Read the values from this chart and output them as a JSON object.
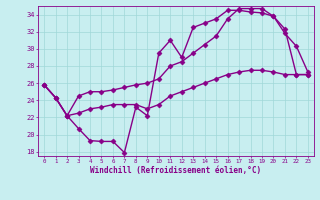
{
  "xlabel": "Windchill (Refroidissement éolien,°C)",
  "background_color": "#c8eef0",
  "line_color": "#880088",
  "grid_color": "#a0d8d8",
  "xlim": [
    -0.5,
    23.5
  ],
  "ylim": [
    17.5,
    35.0
  ],
  "xticks": [
    0,
    1,
    2,
    3,
    4,
    5,
    6,
    7,
    8,
    9,
    10,
    11,
    12,
    13,
    14,
    15,
    16,
    17,
    18,
    19,
    20,
    21,
    22,
    23
  ],
  "yticks": [
    18,
    20,
    22,
    24,
    26,
    28,
    30,
    32,
    34
  ],
  "line1_x": [
    0,
    1,
    2,
    3,
    4,
    5,
    6,
    7,
    8,
    9,
    10,
    11,
    12,
    13,
    14,
    15,
    16,
    17,
    18,
    19,
    20,
    21,
    22,
    23
  ],
  "line1_y": [
    25.8,
    24.3,
    22.2,
    20.7,
    19.3,
    19.2,
    19.2,
    17.9,
    23.2,
    22.2,
    29.5,
    31.0,
    29.0,
    32.5,
    33.0,
    33.5,
    34.5,
    34.5,
    34.3,
    34.2,
    33.8,
    31.8,
    30.3,
    27.3
  ],
  "line2_x": [
    0,
    1,
    2,
    3,
    4,
    5,
    6,
    7,
    8,
    9,
    10,
    11,
    12,
    13,
    14,
    15,
    16,
    17,
    18,
    19,
    20,
    21,
    22,
    23
  ],
  "line2_y": [
    25.8,
    24.3,
    22.2,
    24.5,
    25.0,
    25.0,
    25.2,
    25.5,
    25.8,
    26.0,
    26.5,
    28.0,
    28.5,
    29.5,
    30.5,
    31.5,
    33.5,
    34.7,
    34.7,
    34.7,
    33.8,
    32.3,
    27.0,
    27.0
  ],
  "line3_x": [
    0,
    1,
    2,
    3,
    4,
    5,
    6,
    7,
    8,
    9,
    10,
    11,
    12,
    13,
    14,
    15,
    16,
    17,
    18,
    19,
    20,
    21,
    22,
    23
  ],
  "line3_y": [
    25.8,
    24.3,
    22.2,
    22.5,
    23.0,
    23.2,
    23.5,
    23.5,
    23.5,
    23.0,
    23.5,
    24.5,
    25.0,
    25.5,
    26.0,
    26.5,
    27.0,
    27.3,
    27.5,
    27.5,
    27.3,
    27.0,
    27.0,
    27.0
  ],
  "marker": "D",
  "markersize": 2.5,
  "linewidth": 1.0
}
